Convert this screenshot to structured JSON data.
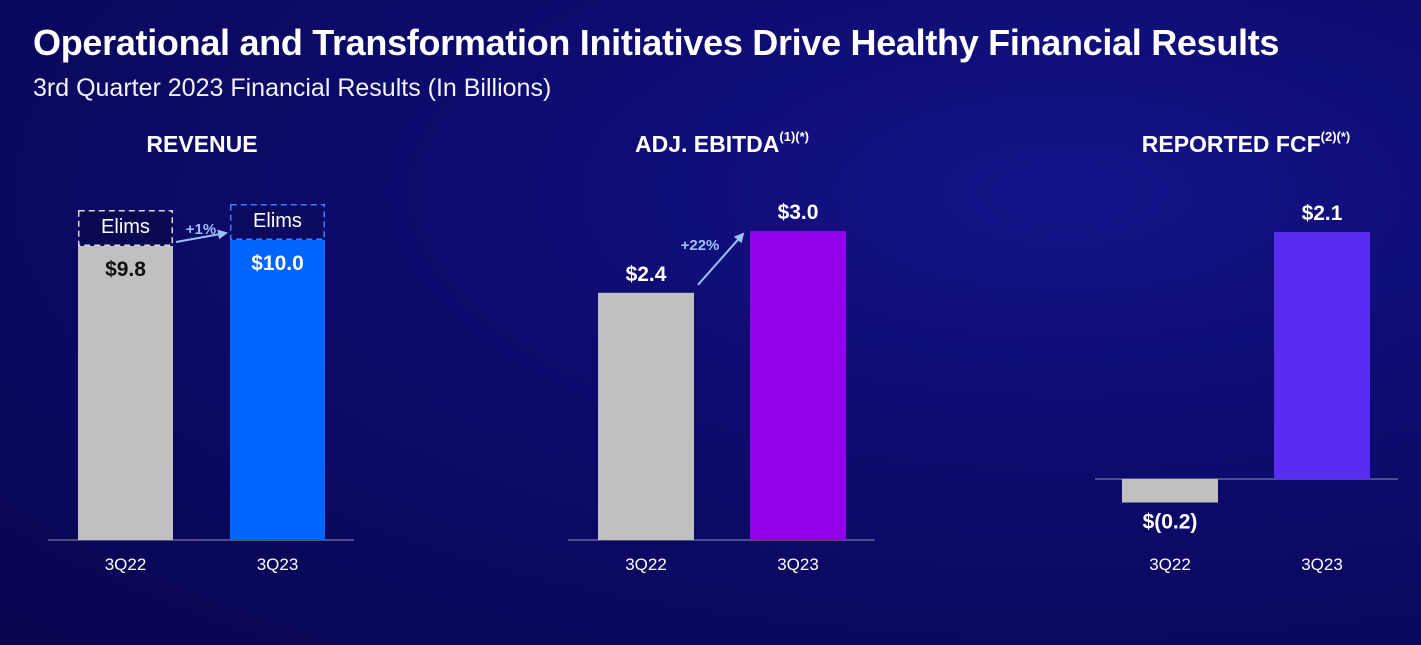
{
  "header": {
    "title": "Operational and Transformation Initiatives Drive Healthy Financial Results",
    "subtitle": "3rd Quarter 2023 Financial Results (In Billions)"
  },
  "colors": {
    "background": "#0d0b6e",
    "gray_bar": "#c0c0c0",
    "revenue_bar": "#0064ff",
    "ebitda_bar": "#9000ea",
    "fcf_bar": "#5a2cf2",
    "arrow": "#9cc0ff"
  },
  "chart_data": [
    {
      "type": "bar",
      "title": "REVENUE",
      "title_superscript": "",
      "categories": [
        "3Q22",
        "3Q23"
      ],
      "values": [
        9.8,
        10.0
      ],
      "value_labels": [
        "$9.8",
        "$10.0"
      ],
      "elims_label": "Elims",
      "growth_label": "+1%",
      "ylim": [
        0,
        11
      ]
    },
    {
      "type": "bar",
      "title": "ADJ. EBITDA",
      "title_superscript": "(1)(*)",
      "categories": [
        "3Q22",
        "3Q23"
      ],
      "values": [
        2.4,
        3.0
      ],
      "value_labels": [
        "$2.4",
        "$3.0"
      ],
      "growth_label": "+22%",
      "ylim": [
        0,
        3.3
      ]
    },
    {
      "type": "bar",
      "title": "REPORTED FCF",
      "title_superscript": "(2)(*)",
      "categories": [
        "3Q22",
        "3Q23"
      ],
      "values": [
        -0.2,
        2.1
      ],
      "value_labels": [
        "$(0.2)",
        "$2.1"
      ],
      "ylim": [
        -0.3,
        2.5
      ]
    }
  ]
}
